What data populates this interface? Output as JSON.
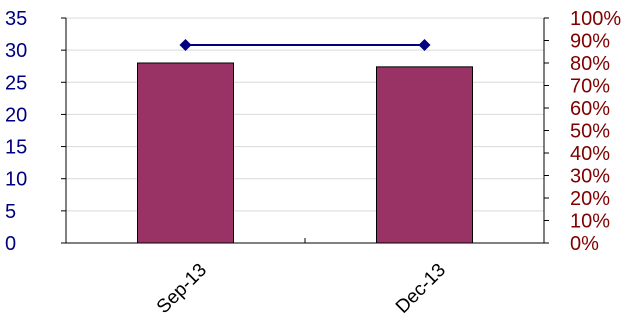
{
  "chart_data": {
    "type": "bar",
    "categories": [
      "Sep-13",
      "Dec-13"
    ],
    "series": [
      {
        "type": "bar",
        "axis": "left",
        "values": [
          28,
          27.4
        ],
        "color": "#993366"
      },
      {
        "type": "line",
        "axis": "right",
        "values": [
          0.88,
          0.88
        ],
        "color": "#000080"
      }
    ],
    "y_left": {
      "min": 0,
      "max": 35,
      "step": 5,
      "ticks": [
        "0",
        "5",
        "10",
        "15",
        "20",
        "25",
        "30",
        "35"
      ],
      "color": "#00007f"
    },
    "y_right": {
      "min": 0,
      "max": 1,
      "step": 0.1,
      "ticks": [
        "0%",
        "10%",
        "20%",
        "30%",
        "40%",
        "50%",
        "60%",
        "70%",
        "80%",
        "90%",
        "100%"
      ],
      "color": "#7f0000"
    },
    "grid": true,
    "legend": "none",
    "title": "",
    "xlabel": "",
    "ylabel": ""
  }
}
